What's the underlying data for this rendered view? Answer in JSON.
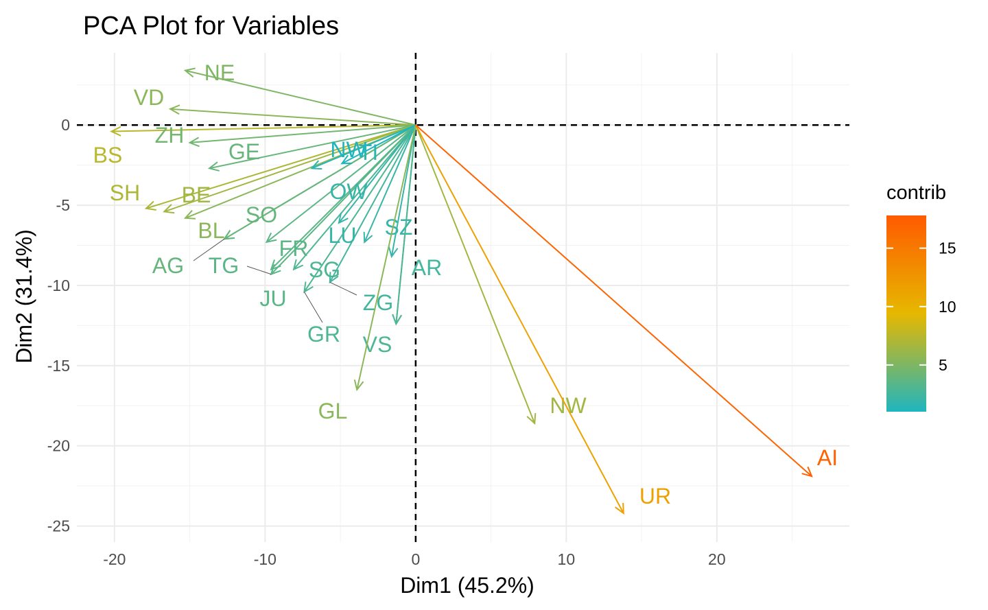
{
  "chart_data": {
    "type": "scatter",
    "subtype": "pca-variable-arrows",
    "title": "PCA Plot for Variables",
    "xlabel": "Dim1 (45.2%)",
    "ylabel": "Dim2 (31.4%)",
    "xlim": [
      -22.5,
      28.8
    ],
    "ylim": [
      -26.0,
      4.5
    ],
    "x_ticks": [
      -20,
      -10,
      0,
      10,
      20
    ],
    "y_ticks": [
      0,
      -5,
      -10,
      -15,
      -20,
      -25
    ],
    "x_tick_labels": [
      "-20",
      "-10",
      "0",
      "10",
      "20"
    ],
    "y_tick_labels": [
      "0",
      "-5",
      "-10",
      "-15",
      "-20",
      "-25"
    ],
    "grid": true,
    "reference_lines": {
      "x": 0,
      "y": 0,
      "style": "dashed"
    },
    "color_scale": {
      "name": "contrib",
      "min": 1,
      "max": 17.8,
      "ticks": [
        5,
        10,
        15
      ],
      "tick_labels": [
        "5",
        "10",
        "15"
      ],
      "colors": [
        "#1fb5bf",
        "#e6b800",
        "#ff5a00"
      ],
      "placement": "right"
    },
    "variables": [
      {
        "name": "NE",
        "x": -15.3,
        "y": 3.4,
        "contrib": 5.0
      },
      {
        "name": "VD",
        "x": -16.3,
        "y": 1.0,
        "contrib": 5.5
      },
      {
        "name": "BS",
        "x": -20.2,
        "y": -0.4,
        "contrib": 7.5
      },
      {
        "name": "ZH",
        "x": -15.0,
        "y": -1.1,
        "contrib": 4.5
      },
      {
        "name": "GE",
        "x": -13.7,
        "y": -2.7,
        "contrib": 4.0
      },
      {
        "name": "SH",
        "x": -17.9,
        "y": -5.2,
        "contrib": 7.0
      },
      {
        "name": "BE",
        "x": -16.7,
        "y": -5.4,
        "contrib": 6.5
      },
      {
        "name": "BL",
        "x": -15.3,
        "y": -5.8,
        "contrib": 5.5
      },
      {
        "name": "SO",
        "x": -12.7,
        "y": -7.1,
        "contrib": 4.0
      },
      {
        "name": "AG",
        "x": -12.7,
        "y": -7.1,
        "contrib": 4.0
      },
      {
        "name": "FR",
        "x": -9.9,
        "y": -7.3,
        "contrib": 3.5
      },
      {
        "name": "TG",
        "x": -9.6,
        "y": -9.3,
        "contrib": 3.5
      },
      {
        "name": "JU",
        "x": -9.6,
        "y": -9.0,
        "contrib": 3.5
      },
      {
        "name": "SG",
        "x": -8.1,
        "y": -9.0,
        "contrib": 3.0
      },
      {
        "name": "GR",
        "x": -7.4,
        "y": -10.4,
        "contrib": 3.0
      },
      {
        "name": "ZG",
        "x": -5.7,
        "y": -9.8,
        "contrib": 2.5
      },
      {
        "name": "TI",
        "x": -6.9,
        "y": -2.7,
        "contrib": 1.5
      },
      {
        "name": "NW",
        "x": -4.9,
        "y": -2.4,
        "contrib": 1.0
      },
      {
        "name": "OW",
        "x": -5.1,
        "y": -6.1,
        "contrib": 2.0
      },
      {
        "name": "LU",
        "x": -3.4,
        "y": -7.3,
        "contrib": 2.0
      },
      {
        "name": "SZ",
        "x": -1.6,
        "y": -8.2,
        "contrib": 2.0
      },
      {
        "name": "AR",
        "x": -1.3,
        "y": -12.4,
        "contrib": 2.5
      },
      {
        "name": "VS",
        "x": -1.3,
        "y": -12.4,
        "contrib": 3.0
      },
      {
        "name": "GL",
        "x": -3.9,
        "y": -16.5,
        "contrib": 5.5
      },
      {
        "name": "NW",
        "x": 7.9,
        "y": -18.6,
        "contrib": 6.5
      },
      {
        "name": "UR",
        "x": 13.8,
        "y": -24.2,
        "contrib": 11.5
      },
      {
        "name": "AI",
        "x": 26.3,
        "y": -21.9,
        "contrib": 17.0
      }
    ]
  }
}
